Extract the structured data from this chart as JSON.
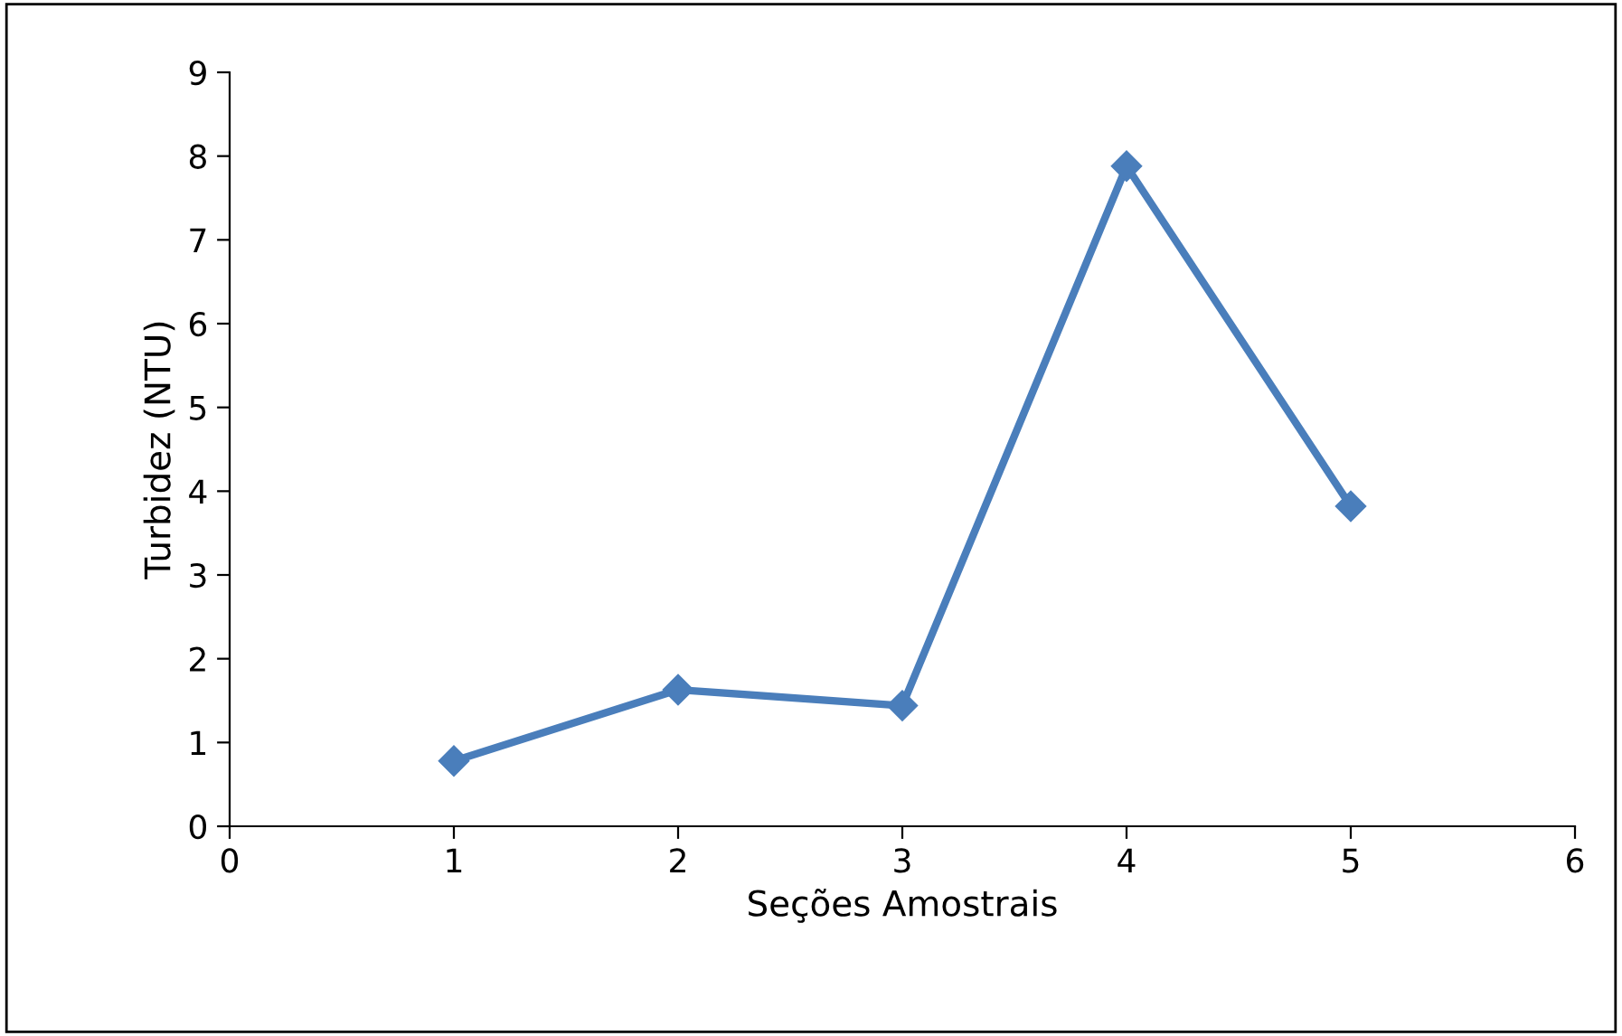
{
  "chart_data": {
    "type": "line",
    "xlabel": "Seções Amostrais",
    "ylabel": "Turbidez (NTU)",
    "x": [
      1,
      2,
      3,
      4,
      5
    ],
    "series": [
      {
        "color": "#4a7ebb",
        "values": [
          0.78,
          1.63,
          1.44,
          7.88,
          3.82
        ]
      }
    ],
    "xlim": [
      0,
      6
    ],
    "xticks": [
      0,
      1,
      2,
      3,
      4,
      5,
      6
    ],
    "ylim": [
      0,
      9
    ],
    "yticks": [
      0,
      1,
      2,
      3,
      4,
      5,
      6,
      7,
      8,
      9
    ],
    "grid": false,
    "legend": false,
    "marker": "diamond",
    "line_style": "solid"
  }
}
